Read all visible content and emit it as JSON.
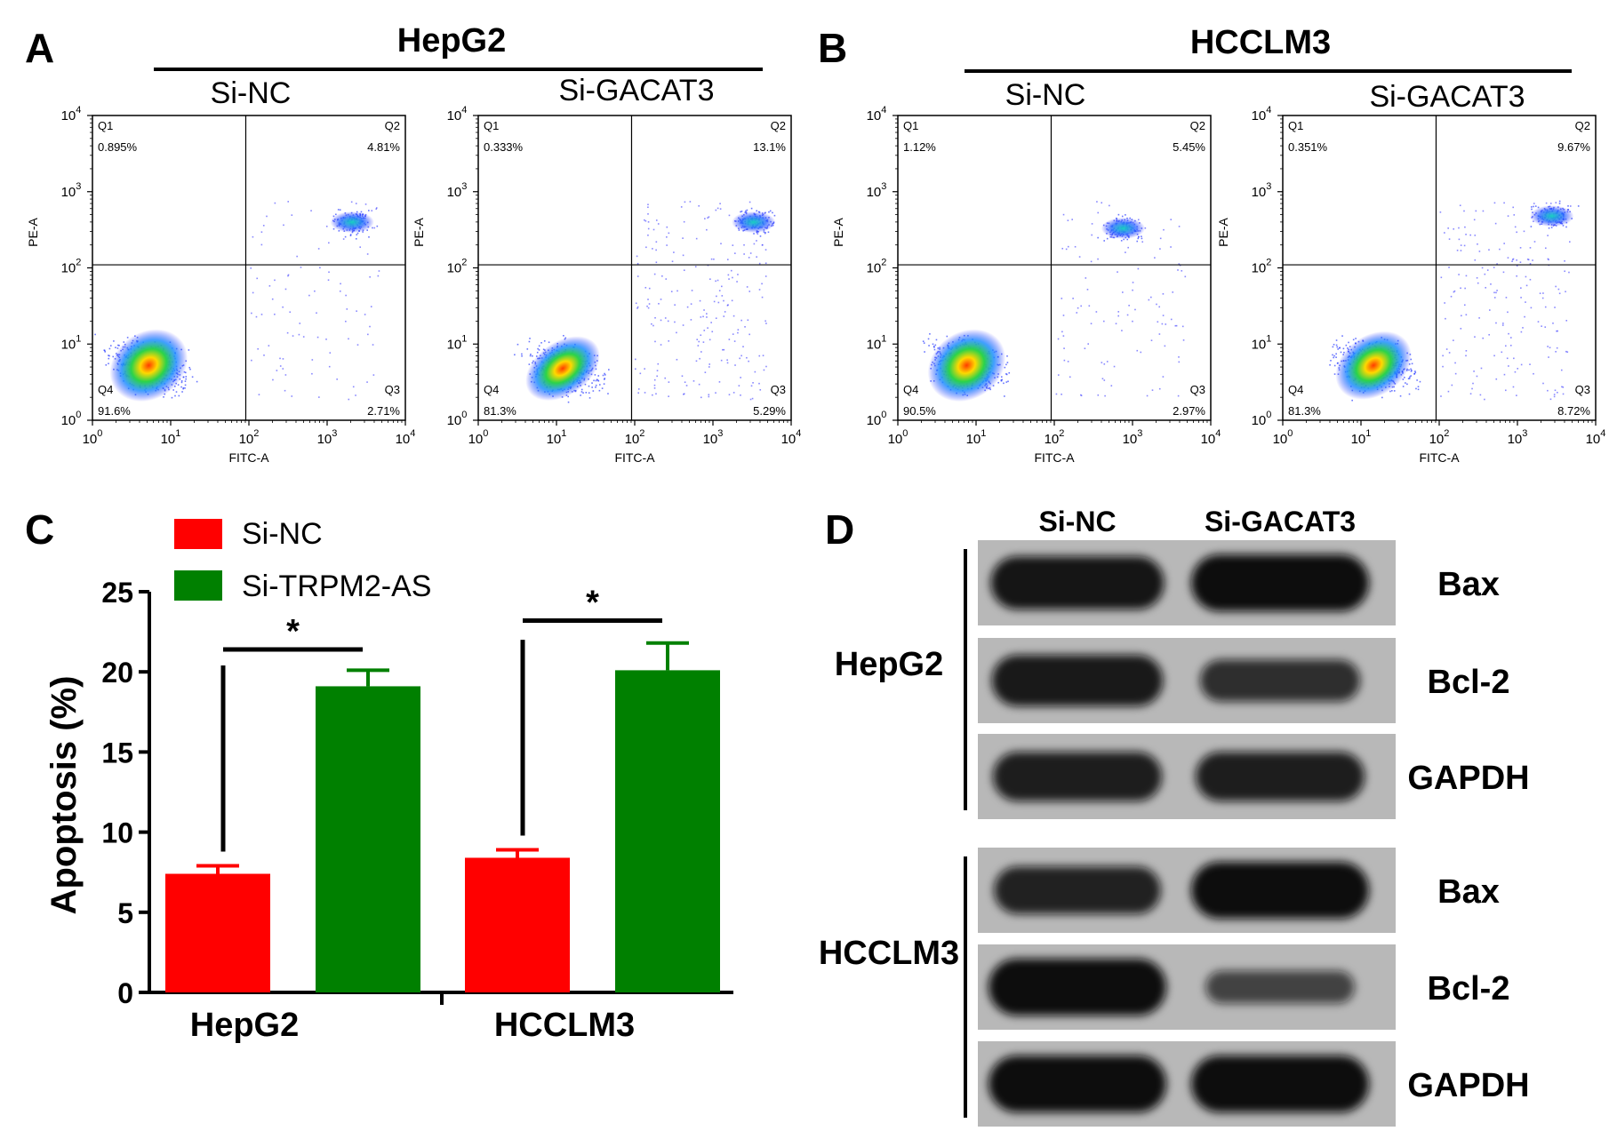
{
  "panel_letters": {
    "A": "A",
    "B": "B",
    "C": "C",
    "D": "D"
  },
  "flow_scale": {
    "tick_base": "10",
    "tick_exponents": [
      "0",
      "1",
      "2",
      "3",
      "4"
    ],
    "xlabel": "FITC-A",
    "ylabel": "PE-A"
  },
  "groups": {
    "A": {
      "title": "HepG2"
    },
    "B": {
      "title": "HCCLM3"
    }
  },
  "flow_panels": [
    {
      "group": "A",
      "label": "Si-NC",
      "q1": {
        "name": "Q1",
        "pct": "0.895%"
      },
      "q2": {
        "name": "Q2",
        "pct": "4.81%"
      },
      "q3": {
        "name": "Q3",
        "pct": "2.71%"
      },
      "q4": {
        "name": "Q4",
        "pct": "91.6%"
      }
    },
    {
      "group": "A",
      "label": "Si-GACAT3",
      "q1": {
        "name": "Q1",
        "pct": "0.333%"
      },
      "q2": {
        "name": "Q2",
        "pct": "13.1%"
      },
      "q3": {
        "name": "Q3",
        "pct": "5.29%"
      },
      "q4": {
        "name": "Q4",
        "pct": "81.3%"
      }
    },
    {
      "group": "B",
      "label": "Si-NC",
      "q1": {
        "name": "Q1",
        "pct": "1.12%"
      },
      "q2": {
        "name": "Q2",
        "pct": "5.45%"
      },
      "q3": {
        "name": "Q3",
        "pct": "2.97%"
      },
      "q4": {
        "name": "Q4",
        "pct": "90.5%"
      }
    },
    {
      "group": "B",
      "label": "Si-GACAT3",
      "q1": {
        "name": "Q1",
        "pct": "0.351%"
      },
      "q2": {
        "name": "Q2",
        "pct": "9.67%"
      },
      "q3": {
        "name": "Q3",
        "pct": "8.72%"
      },
      "q4": {
        "name": "Q4",
        "pct": "81.3%"
      }
    }
  ],
  "chart_data": {
    "type": "bar",
    "ylabel": "Apoptosis (%)",
    "ylim": [
      0,
      25
    ],
    "yticks": [
      "0",
      "5",
      "10",
      "15",
      "20",
      "25"
    ],
    "categories": [
      "HepG2",
      "HCCLM3"
    ],
    "series": [
      {
        "name": "Si-NC",
        "color": "#ff0000",
        "values": [
          7.4,
          8.4
        ],
        "errors": [
          0.5,
          0.5
        ]
      },
      {
        "name": "Si-TRPM2-AS",
        "color": "#008000",
        "values": [
          19.1,
          20.1
        ],
        "errors": [
          1.0,
          1.7
        ]
      }
    ],
    "significance": [
      "*",
      "*"
    ],
    "legend_position": "top-left",
    "grid": false
  },
  "western": {
    "columns": [
      "Si-NC",
      "Si-GACAT3"
    ],
    "blocks": [
      {
        "cell_line": "HepG2",
        "rows": [
          {
            "protein": "Bax",
            "intensity": [
              0.9,
              1.0
            ]
          },
          {
            "protein": "Bcl-2",
            "intensity": [
              0.85,
              0.6
            ]
          },
          {
            "protein": "GAPDH",
            "intensity": [
              0.8,
              0.8
            ]
          }
        ]
      },
      {
        "cell_line": "HCCLM3",
        "rows": [
          {
            "protein": "Bax",
            "intensity": [
              0.75,
              1.0
            ]
          },
          {
            "protein": "Bcl-2",
            "intensity": [
              1.0,
              0.35
            ]
          },
          {
            "protein": "GAPDH",
            "intensity": [
              1.0,
              1.0
            ]
          }
        ]
      }
    ]
  },
  "colors": {
    "si_nc": "#ff0000",
    "si_trpm2_as": "#008000",
    "blot_membrane": "#b8b8b8",
    "band": "#111111"
  }
}
